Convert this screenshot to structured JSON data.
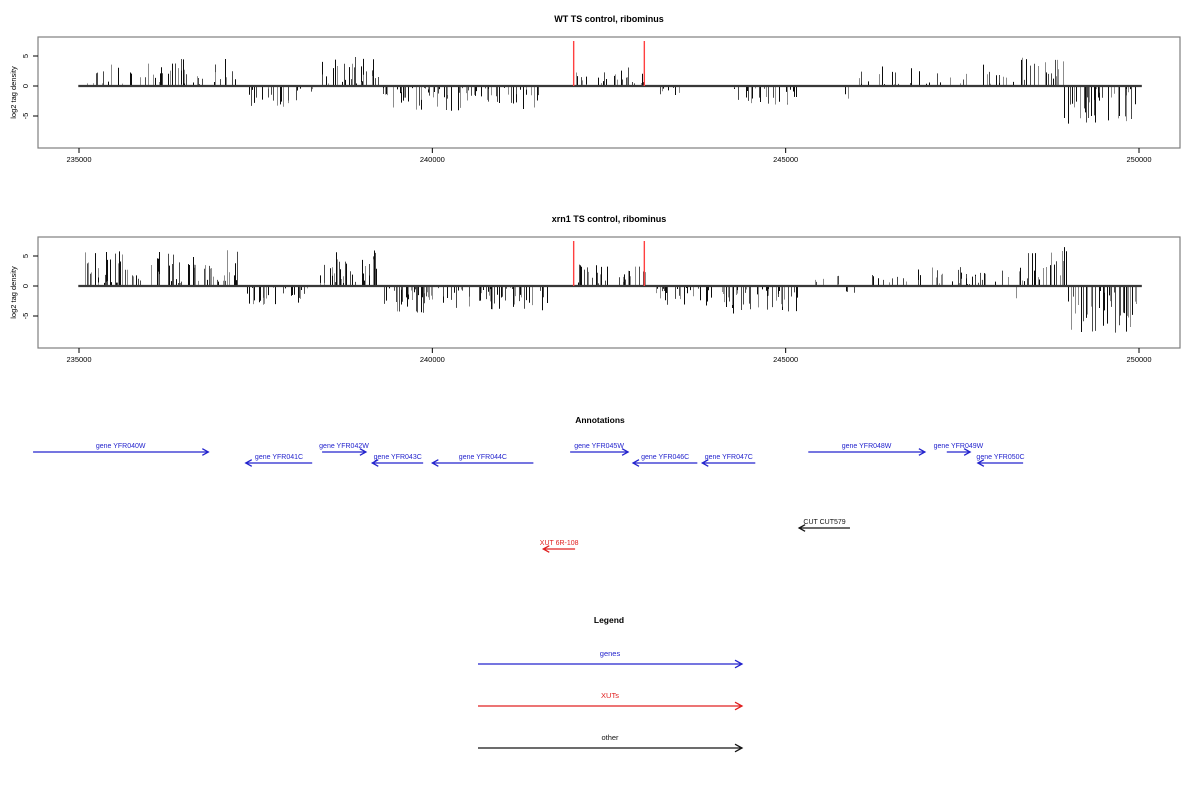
{
  "page": {
    "background": "#ffffff"
  },
  "colors": {
    "gene_blue": "#2323cd",
    "xut_red": "#e02020",
    "other_black": "#151515",
    "marker_red": "#ff4040",
    "bar_dark": "#0d0d0d",
    "bar_mid": "#4a4a4a",
    "bar_light": "#8c8c8c",
    "baseline": "#383838",
    "box_border": "#7f7f7f",
    "text": "#000000"
  },
  "chart_data": [
    {
      "type": "bar",
      "title": "WT TS control, ribominus",
      "ylabel": "log2 tag density",
      "xlabel": "",
      "x_ticks": [
        235000,
        240000,
        245000,
        250000
      ],
      "x_tick_labels": [
        "235000",
        "240000",
        "245000",
        "250000"
      ],
      "y_ticks": [
        5,
        0,
        -5
      ],
      "y_tick_labels": [
        "5",
        "0",
        "-5"
      ],
      "xlim": [
        234300,
        250600
      ],
      "ylim": [
        -10.3,
        8.2
      ],
      "grid": false,
      "marker_lines_x": [
        242000,
        243000
      ],
      "bar_regions": [
        {
          "from": 235060,
          "to": 237250,
          "dir": "up",
          "density": 0.33,
          "min": 0.3,
          "max": 4.6
        },
        {
          "from": 237350,
          "to": 238310,
          "dir": "down",
          "density": 0.38,
          "min": 0.3,
          "max": 3.6
        },
        {
          "from": 238380,
          "to": 239230,
          "dir": "up",
          "density": 0.5,
          "min": 0.4,
          "max": 5.0
        },
        {
          "from": 239290,
          "to": 241590,
          "dir": "down",
          "density": 0.5,
          "min": 0.3,
          "max": 4.3
        },
        {
          "from": 242020,
          "to": 243010,
          "dir": "up",
          "density": 0.38,
          "min": 0.3,
          "max": 3.2
        },
        {
          "from": 243110,
          "to": 243790,
          "dir": "down",
          "density": 0.17,
          "min": 0.3,
          "max": 1.5
        },
        {
          "from": 244180,
          "to": 245150,
          "dir": "down",
          "density": 0.42,
          "min": 0.3,
          "max": 3.1
        },
        {
          "from": 245810,
          "to": 245900,
          "dir": "down",
          "density": 0.35,
          "min": 1.2,
          "max": 3.0
        },
        {
          "from": 246020,
          "to": 248230,
          "dir": "up",
          "density": 0.25,
          "min": 0.3,
          "max": 3.6
        },
        {
          "from": 248320,
          "to": 248930,
          "dir": "up",
          "density": 0.55,
          "min": 0.8,
          "max": 4.8
        },
        {
          "from": 248930,
          "to": 249940,
          "dir": "down",
          "density": 0.6,
          "min": 0.5,
          "max": 6.4
        }
      ]
    },
    {
      "type": "bar",
      "title": "xrn1 TS control, ribominus",
      "ylabel": "log2 tag density",
      "xlabel": "",
      "x_ticks": [
        235000,
        240000,
        245000,
        250000
      ],
      "x_tick_labels": [
        "235000",
        "240000",
        "245000",
        "250000"
      ],
      "y_ticks": [
        5,
        0,
        -5
      ],
      "y_tick_labels": [
        "5",
        "0",
        "-5"
      ],
      "xlim": [
        234300,
        250600
      ],
      "ylim": [
        -10.3,
        8.2
      ],
      "grid": false,
      "marker_lines_x": [
        242000,
        243000
      ],
      "bar_regions": [
        {
          "from": 235040,
          "to": 237280,
          "dir": "up",
          "density": 0.55,
          "min": 0.5,
          "max": 6.0
        },
        {
          "from": 237360,
          "to": 238330,
          "dir": "down",
          "density": 0.5,
          "min": 0.3,
          "max": 3.3
        },
        {
          "from": 238380,
          "to": 239230,
          "dir": "up",
          "density": 0.6,
          "min": 0.5,
          "max": 6.3
        },
        {
          "from": 239290,
          "to": 241640,
          "dir": "down",
          "density": 0.55,
          "min": 0.3,
          "max": 4.6
        },
        {
          "from": 242020,
          "to": 243010,
          "dir": "up",
          "density": 0.5,
          "min": 0.4,
          "max": 3.6
        },
        {
          "from": 243080,
          "to": 243960,
          "dir": "down",
          "density": 0.45,
          "min": 0.3,
          "max": 3.3
        },
        {
          "from": 244100,
          "to": 245180,
          "dir": "down",
          "density": 0.6,
          "min": 0.5,
          "max": 4.6
        },
        {
          "from": 245290,
          "to": 246080,
          "dir": "up",
          "density": 0.1,
          "min": 0.3,
          "max": 2.3
        },
        {
          "from": 245400,
          "to": 246000,
          "dir": "down",
          "density": 0.06,
          "min": 0.3,
          "max": 1.4
        },
        {
          "from": 246170,
          "to": 248200,
          "dir": "up",
          "density": 0.3,
          "min": 0.3,
          "max": 3.2
        },
        {
          "from": 248120,
          "to": 248260,
          "dir": "down",
          "density": 0.1,
          "min": 1.5,
          "max": 2.2
        },
        {
          "from": 248290,
          "to": 248970,
          "dir": "up",
          "density": 0.6,
          "min": 0.8,
          "max": 6.5
        },
        {
          "from": 248970,
          "to": 249960,
          "dir": "down",
          "density": 0.65,
          "min": 0.8,
          "max": 7.8
        }
      ]
    }
  ],
  "annotations": {
    "title": "Annotations",
    "genes": [
      {
        "label": "gene YFR040W",
        "start": 234350,
        "end": 236830,
        "strand": "+"
      },
      {
        "label": "gene YFR041C",
        "start": 237360,
        "end": 238300,
        "strand": "-"
      },
      {
        "label": "gene YFR042W",
        "start": 238440,
        "end": 239060,
        "strand": "+"
      },
      {
        "label": "gene YFR043C",
        "start": 239150,
        "end": 239870,
        "strand": "-"
      },
      {
        "label": "gene YFR044C",
        "start": 240000,
        "end": 241430,
        "strand": "-"
      },
      {
        "label": "gene YFR045W",
        "start": 241950,
        "end": 242770,
        "strand": "+"
      },
      {
        "label": "gene YFR046C",
        "start": 242840,
        "end": 243750,
        "strand": "-"
      },
      {
        "label": "gene YFR047C",
        "start": 243820,
        "end": 244570,
        "strand": "-"
      },
      {
        "label": "gene YFR048W",
        "start": 245320,
        "end": 246970,
        "strand": "+"
      },
      {
        "label": "gene YFR049W",
        "start": 247280,
        "end": 247610,
        "strand": "+"
      },
      {
        "label": "gene YFR050C",
        "start": 247720,
        "end": 248360,
        "strand": "-"
      }
    ],
    "other_features": [
      {
        "label": "CUT CUT579",
        "start": 245190,
        "end": 245910,
        "strand": "-"
      }
    ],
    "xuts": [
      {
        "label": "XUT 6R-108",
        "start": 241570,
        "end": 242020,
        "strand": "-"
      }
    ]
  },
  "legend": {
    "title": "Legend",
    "items": [
      {
        "label": "genes",
        "color": "#2323cd"
      },
      {
        "label": "XUTs",
        "color": "#e02020"
      },
      {
        "label": "other",
        "color": "#151515"
      }
    ]
  }
}
